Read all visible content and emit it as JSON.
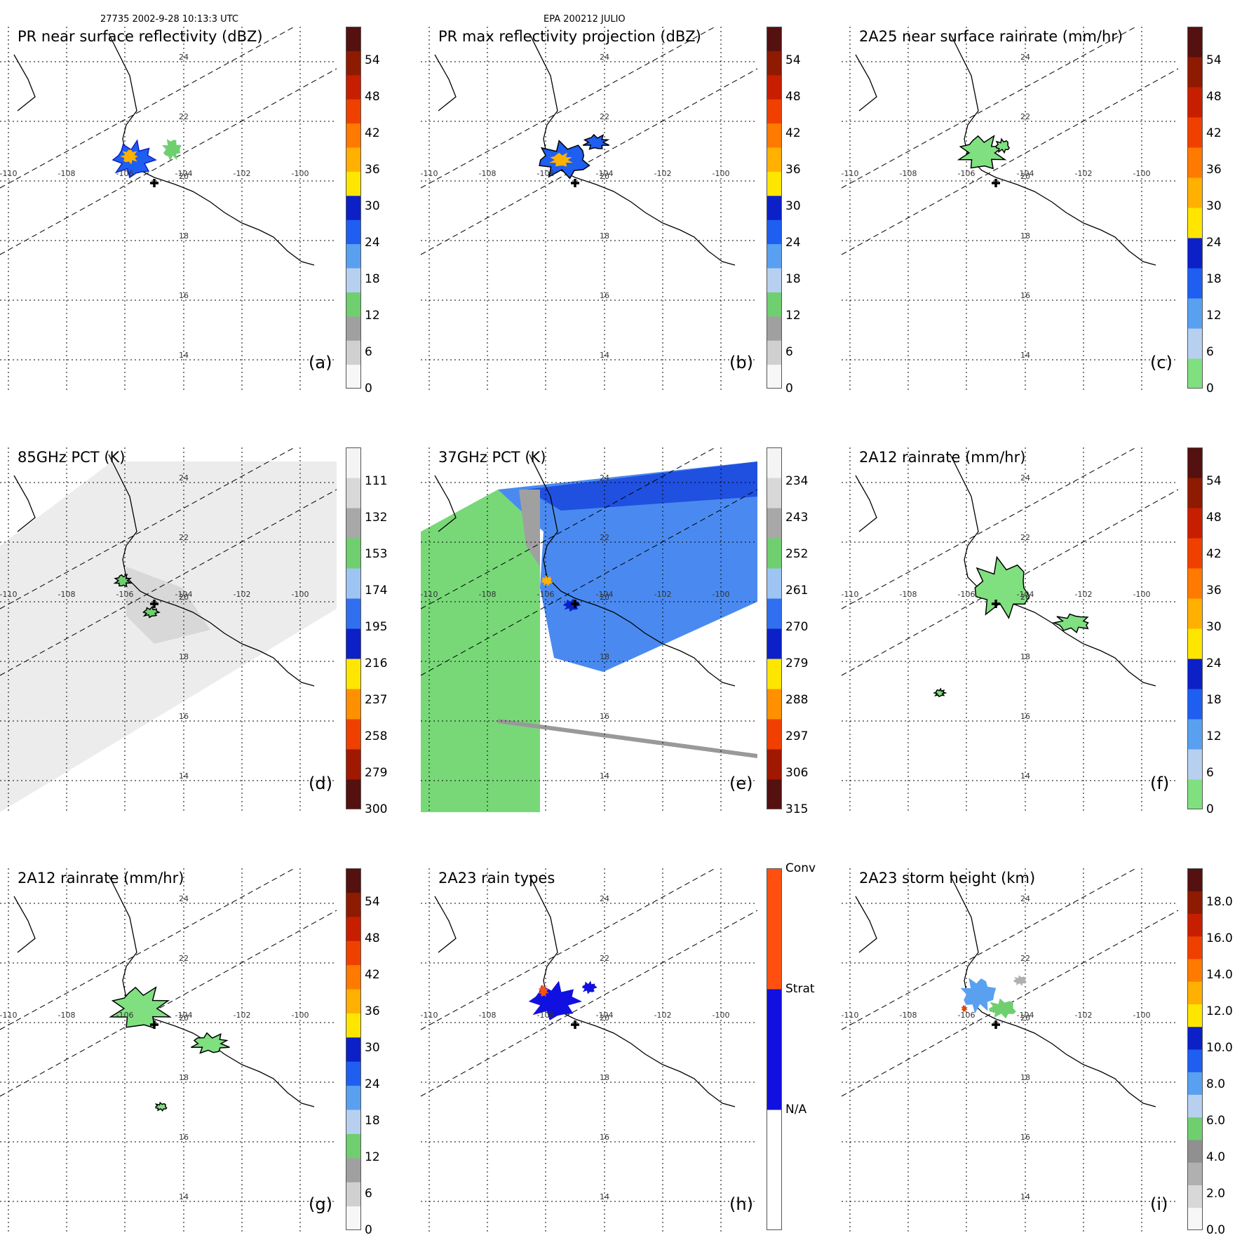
{
  "header": {
    "orbit_time": "27735 2002-9-28 10:13:3 UTC",
    "storm": "EPA 200212 JULIO"
  },
  "map": {
    "lon_labels": [
      "-110",
      "-108",
      "-106",
      "-104",
      "-102",
      "-100"
    ],
    "lat_labels": [
      "24",
      "22",
      "20",
      "18",
      "16",
      "14"
    ],
    "center_marker_icon": "plus-icon"
  },
  "panels": [
    {
      "id": "a",
      "title": "PR near surface reflectivity (dBZ)",
      "label": "(a)",
      "scale": "z",
      "ticks": [
        "54",
        "48",
        "42",
        "36",
        "30",
        "24",
        "18",
        "12",
        "6",
        "0"
      ]
    },
    {
      "id": "b",
      "title": "PR max reflectivity projection (dBZ)",
      "label": "(b)",
      "scale": "z",
      "ticks": [
        "54",
        "48",
        "42",
        "36",
        "30",
        "24",
        "18",
        "12",
        "6",
        "0"
      ]
    },
    {
      "id": "c",
      "title": "2A25 near surface rainrate (mm/hr)",
      "label": "(c)",
      "scale": "rain",
      "ticks": [
        "54",
        "48",
        "42",
        "36",
        "30",
        "24",
        "18",
        "12",
        "6",
        "0"
      ]
    },
    {
      "id": "d",
      "title": "85GHz PCT (K)",
      "label": "(d)",
      "scale": "pct",
      "ticks": [
        "111",
        "132",
        "153",
        "174",
        "195",
        "216",
        "237",
        "258",
        "279",
        "300"
      ]
    },
    {
      "id": "e",
      "title": "37GHz PCT (K)",
      "label": "(e)",
      "scale": "pct",
      "ticks": [
        "234",
        "243",
        "252",
        "261",
        "270",
        "279",
        "288",
        "297",
        "306",
        "315"
      ]
    },
    {
      "id": "f",
      "title": "2A12 rainrate (mm/hr)",
      "label": "(f)",
      "scale": "rain",
      "ticks": [
        "54",
        "48",
        "42",
        "36",
        "30",
        "24",
        "18",
        "12",
        "6",
        "0"
      ]
    },
    {
      "id": "g",
      "title": "2A12 rainrate (mm/hr)",
      "label": "(g)",
      "scale": "z",
      "ticks": [
        "54",
        "48",
        "42",
        "36",
        "30",
        "24",
        "18",
        "12",
        "6",
        "0"
      ]
    },
    {
      "id": "h",
      "title": "2A23 rain types",
      "label": "(h)",
      "scale": "types",
      "ticks": [
        "Conv",
        "Strat",
        "N/A"
      ]
    },
    {
      "id": "i",
      "title": "2A23 storm height (km)",
      "label": "(i)",
      "scale": "height",
      "ticks": [
        "18.0",
        "16.0",
        "14.0",
        "12.0",
        "10.0",
        "8.0",
        "6.0",
        "4.0",
        "2.0",
        "0.0"
      ]
    }
  ],
  "colors": {
    "z": [
      "#f7f7f7",
      "#d0d0d0",
      "#a0a0a0",
      "#6fcf6f",
      "#b8d0f0",
      "#5aa0f0",
      "#1e5ef0",
      "#0c20c8",
      "#ffe600",
      "#ffb000",
      "#ff7a00",
      "#f04000",
      "#c81e00",
      "#8e1a00",
      "#551010"
    ],
    "rain": [
      "#80e080",
      "#b8d0f0",
      "#5aa0f0",
      "#1e5ef0",
      "#0c20c8",
      "#ffe600",
      "#ffb000",
      "#ff7a00",
      "#f04000",
      "#c81e00",
      "#8e1a00",
      "#551010"
    ],
    "pct": [
      "#551010",
      "#a01800",
      "#f04000",
      "#ff9000",
      "#ffe600",
      "#0c20c8",
      "#3070f0",
      "#9ec4f4",
      "#6fcf6f",
      "#a8a8a8",
      "#d8d8d8",
      "#f4f4f4"
    ],
    "height": [
      "#f7f7f7",
      "#d8d8d8",
      "#b0b0b0",
      "#909090",
      "#6fcf6f",
      "#b8d0f0",
      "#5aa0f0",
      "#1e5ef0",
      "#0c20c8",
      "#ffe600",
      "#ffb000",
      "#ff7a00",
      "#f04000",
      "#c81e00",
      "#8e1a00",
      "#551010"
    ],
    "types": [
      "#ffffff",
      "#1010e0",
      "#ff5010"
    ]
  }
}
